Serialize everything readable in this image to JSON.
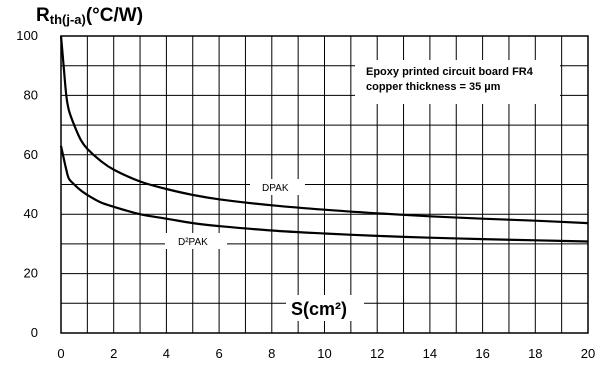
{
  "chart_data": {
    "type": "line",
    "ylabel": {
      "main": "R",
      "sub": "th(j-a)",
      "unit": "(°C/W)"
    },
    "xlabel": "S(cm²)",
    "xlim": [
      0,
      20
    ],
    "ylim": [
      0,
      100
    ],
    "x_ticks": [
      "0",
      "2",
      "4",
      "6",
      "8",
      "10",
      "12",
      "14",
      "16",
      "18",
      "20"
    ],
    "y_ticks": [
      "0",
      "20",
      "40",
      "60",
      "80",
      "100"
    ],
    "grid": true,
    "annotation": [
      "Epoxy printed circuit board FR4",
      "copper thickness = 35 µm"
    ],
    "series": [
      {
        "name": "DPAK",
        "x": [
          0,
          0.1,
          0.2,
          0.3,
          0.5,
          0.75,
          1,
          1.5,
          2,
          3,
          4,
          5,
          6,
          8,
          10,
          12,
          14,
          16,
          18,
          20
        ],
        "y": [
          100,
          90,
          80,
          75,
          70,
          65,
          62,
          58,
          55,
          51,
          48.5,
          46.5,
          45,
          43,
          41.5,
          40.3,
          39.3,
          38.5,
          37.8,
          37
        ]
      },
      {
        "name": "D²PAK",
        "x": [
          0,
          0.1,
          0.2,
          0.3,
          0.5,
          0.75,
          1,
          1.5,
          2,
          3,
          4,
          5,
          6,
          8,
          10,
          12,
          14,
          16,
          18,
          20
        ],
        "y": [
          63,
          59,
          55,
          52,
          50,
          48,
          46.5,
          44,
          42.5,
          40,
          38.5,
          37,
          36,
          34.5,
          33.5,
          32.7,
          32.1,
          31.6,
          31.2,
          30.8
        ]
      }
    ]
  }
}
